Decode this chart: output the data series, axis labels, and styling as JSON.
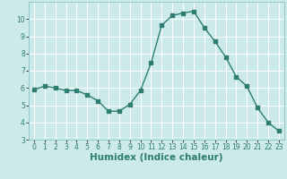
{
  "x": [
    0,
    1,
    2,
    3,
    4,
    5,
    6,
    7,
    8,
    9,
    10,
    11,
    12,
    13,
    14,
    15,
    16,
    17,
    18,
    19,
    20,
    21,
    22,
    23
  ],
  "y": [
    5.9,
    6.1,
    6.0,
    5.85,
    5.85,
    5.6,
    5.25,
    4.65,
    4.65,
    5.05,
    5.85,
    7.45,
    9.65,
    10.2,
    10.35,
    10.45,
    9.5,
    8.7,
    7.8,
    6.65,
    6.1,
    4.85,
    4.0,
    3.5
  ],
  "line_color": "#2e7d72",
  "marker": "s",
  "marker_size": 2.5,
  "line_width": 1.0,
  "xlabel": "Humidex (Indice chaleur)",
  "xlim": [
    -0.5,
    23.5
  ],
  "ylim": [
    3,
    11
  ],
  "yticks": [
    3,
    4,
    5,
    6,
    7,
    8,
    9,
    10
  ],
  "xticks": [
    0,
    1,
    2,
    3,
    4,
    5,
    6,
    7,
    8,
    9,
    10,
    11,
    12,
    13,
    14,
    15,
    16,
    17,
    18,
    19,
    20,
    21,
    22,
    23
  ],
  "bg_color": "#cceaea",
  "grid_color": "#ffffff",
  "tick_label_fontsize": 5.5,
  "xlabel_fontsize": 7.5
}
